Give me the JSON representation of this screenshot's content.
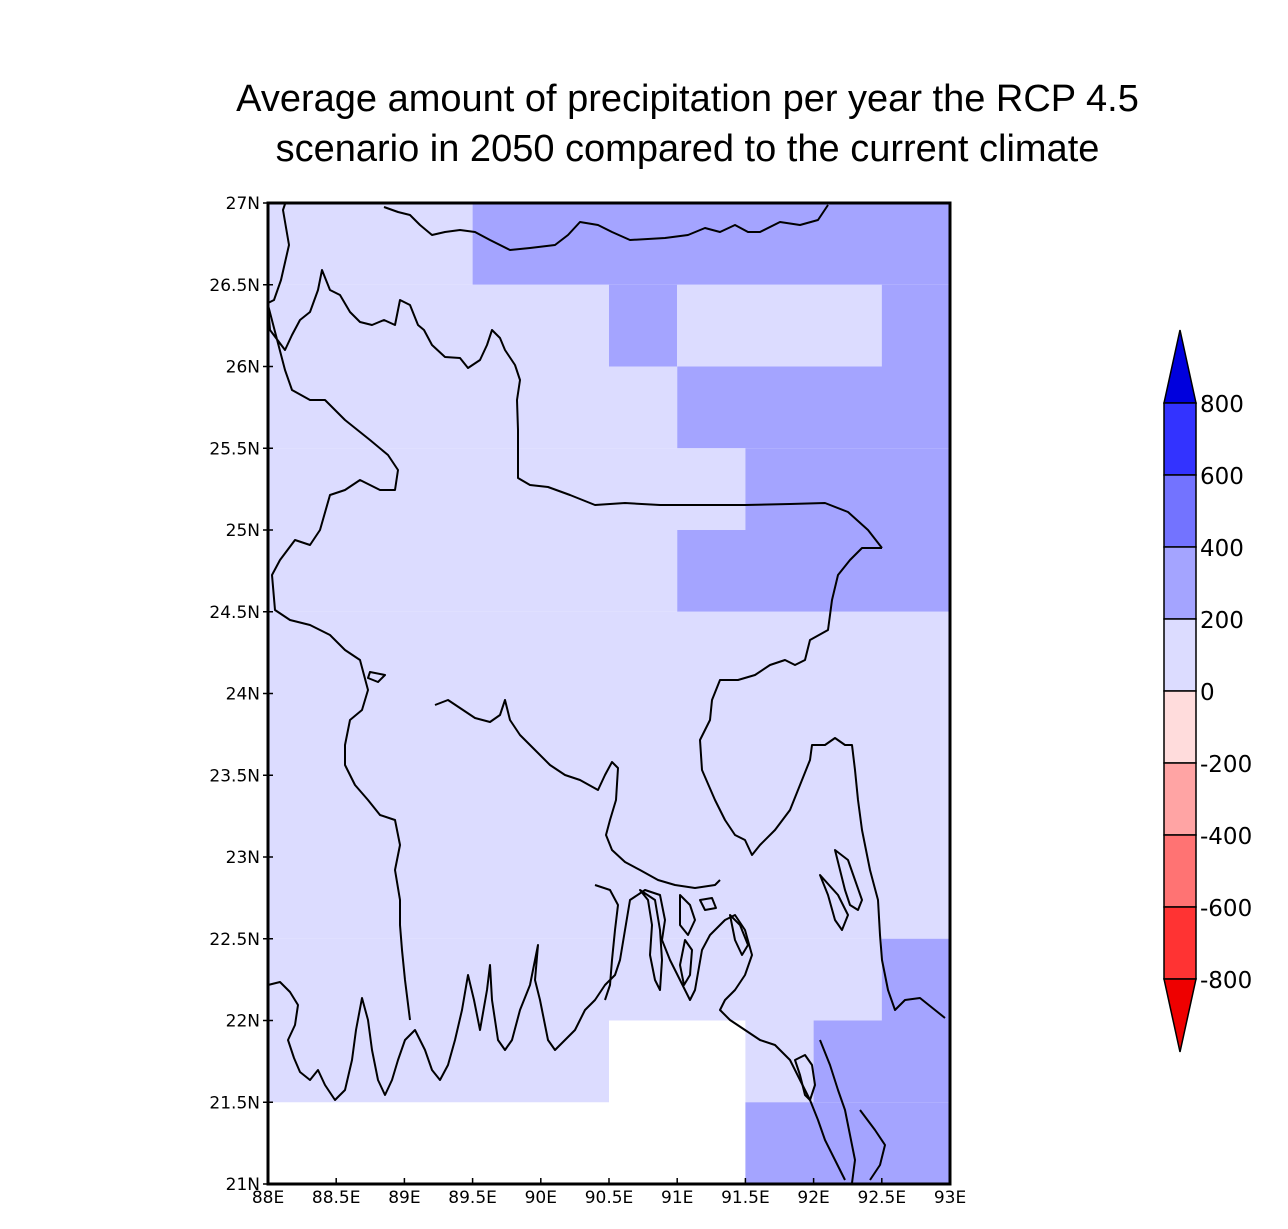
{
  "title": {
    "line1": "Average amount of precipitation per year the RCP 4.5",
    "line2": "scenario in 2050 compared to the current climate"
  },
  "map": {
    "lon_range": [
      88,
      93
    ],
    "lat_range": [
      21,
      27
    ],
    "x_ticks": [
      "88E",
      "88.5E",
      "89E",
      "89.5E",
      "90E",
      "90.5E",
      "91E",
      "91.5E",
      "92E",
      "92.5E",
      "93E"
    ],
    "y_ticks": [
      "21N",
      "21.5N",
      "22N",
      "22.5N",
      "23N",
      "23.5N",
      "24N",
      "24.5N",
      "25N",
      "25.5N",
      "26N",
      "26.5N",
      "27N"
    ]
  },
  "colorbar": {
    "ticks": [
      "800",
      "600",
      "400",
      "200",
      "0",
      "-200",
      "-400",
      "-600",
      "-800"
    ],
    "colors": {
      "above_800": "#0000dd",
      "600_800": "#3333ff",
      "400_600": "#7373ff",
      "200_400": "#a4a4ff",
      "0_200": "#dcdcff",
      "neg200_0": "#ffdcdc",
      "neg400_neg200": "#ffa4a4",
      "neg600_neg400": "#ff7373",
      "neg800_neg600": "#ff3333",
      "below_neg800": "#ee0000"
    }
  },
  "chart_data": {
    "type": "heatmap",
    "title": "Average amount of precipitation per year the RCP 4.5 scenario in 2050 compared to the current climate",
    "x_range": [
      88,
      93
    ],
    "y_range": [
      21,
      27
    ],
    "legend_position": "right",
    "classes": [
      {
        "range": [
          0,
          200
        ],
        "color": "#dcdcff"
      },
      {
        "range": [
          200,
          400
        ],
        "color": "#a4a4ff"
      },
      {
        "range": [
          400,
          600
        ],
        "color": "#7373ff"
      },
      {
        "range": [
          600,
          800
        ],
        "color": "#3333ff"
      }
    ],
    "cells": [
      {
        "lon": [
          88,
          89.5
        ],
        "lat": [
          26.5,
          27
        ],
        "class": [
          0,
          200
        ]
      },
      {
        "lon": [
          89.5,
          93
        ],
        "lat": [
          26.5,
          27
        ],
        "class": [
          200,
          400
        ]
      },
      {
        "lon": [
          88,
          90.5
        ],
        "lat": [
          26,
          26.5
        ],
        "class": [
          0,
          200
        ]
      },
      {
        "lon": [
          90.5,
          91
        ],
        "lat": [
          26,
          26.5
        ],
        "class": [
          200,
          400
        ]
      },
      {
        "lon": [
          91,
          92.5
        ],
        "lat": [
          26,
          26.5
        ],
        "class": [
          0,
          200
        ]
      },
      {
        "lon": [
          92.5,
          93
        ],
        "lat": [
          26,
          26.5
        ],
        "class": [
          200,
          400
        ]
      },
      {
        "lon": [
          88,
          91
        ],
        "lat": [
          25.5,
          26
        ],
        "class": [
          0,
          200
        ]
      },
      {
        "lon": [
          91,
          93
        ],
        "lat": [
          25.5,
          26
        ],
        "class": [
          200,
          400
        ]
      },
      {
        "lon": [
          88,
          91.5
        ],
        "lat": [
          25,
          25.5
        ],
        "class": [
          0,
          200
        ]
      },
      {
        "lon": [
          91.5,
          93
        ],
        "lat": [
          25,
          25.5
        ],
        "class": [
          200,
          400
        ]
      },
      {
        "lon": [
          88,
          91
        ],
        "lat": [
          24.5,
          25
        ],
        "class": [
          0,
          200
        ]
      },
      {
        "lon": [
          91,
          93
        ],
        "lat": [
          24.5,
          25
        ],
        "class": [
          200,
          400
        ]
      },
      {
        "lon": [
          88,
          93
        ],
        "lat": [
          22.5,
          24.5
        ],
        "class": [
          0,
          200
        ]
      },
      {
        "lon": [
          88,
          92.5
        ],
        "lat": [
          22,
          22.5
        ],
        "class": [
          0,
          200
        ]
      },
      {
        "lon": [
          92.5,
          93
        ],
        "lat": [
          22,
          22.5
        ],
        "class": [
          200,
          400
        ]
      },
      {
        "lon": [
          88,
          90.5
        ],
        "lat": [
          21.5,
          22
        ],
        "class": [
          0,
          200
        ]
      },
      {
        "lon": [
          91.5,
          92
        ],
        "lat": [
          21.5,
          22
        ],
        "class": [
          0,
          200
        ]
      },
      {
        "lon": [
          92,
          93
        ],
        "lat": [
          21.5,
          22
        ],
        "class": [
          200,
          400
        ]
      },
      {
        "lon": [
          91.5,
          93
        ],
        "lat": [
          21,
          21.5
        ],
        "class": [
          200,
          400
        ]
      }
    ]
  }
}
